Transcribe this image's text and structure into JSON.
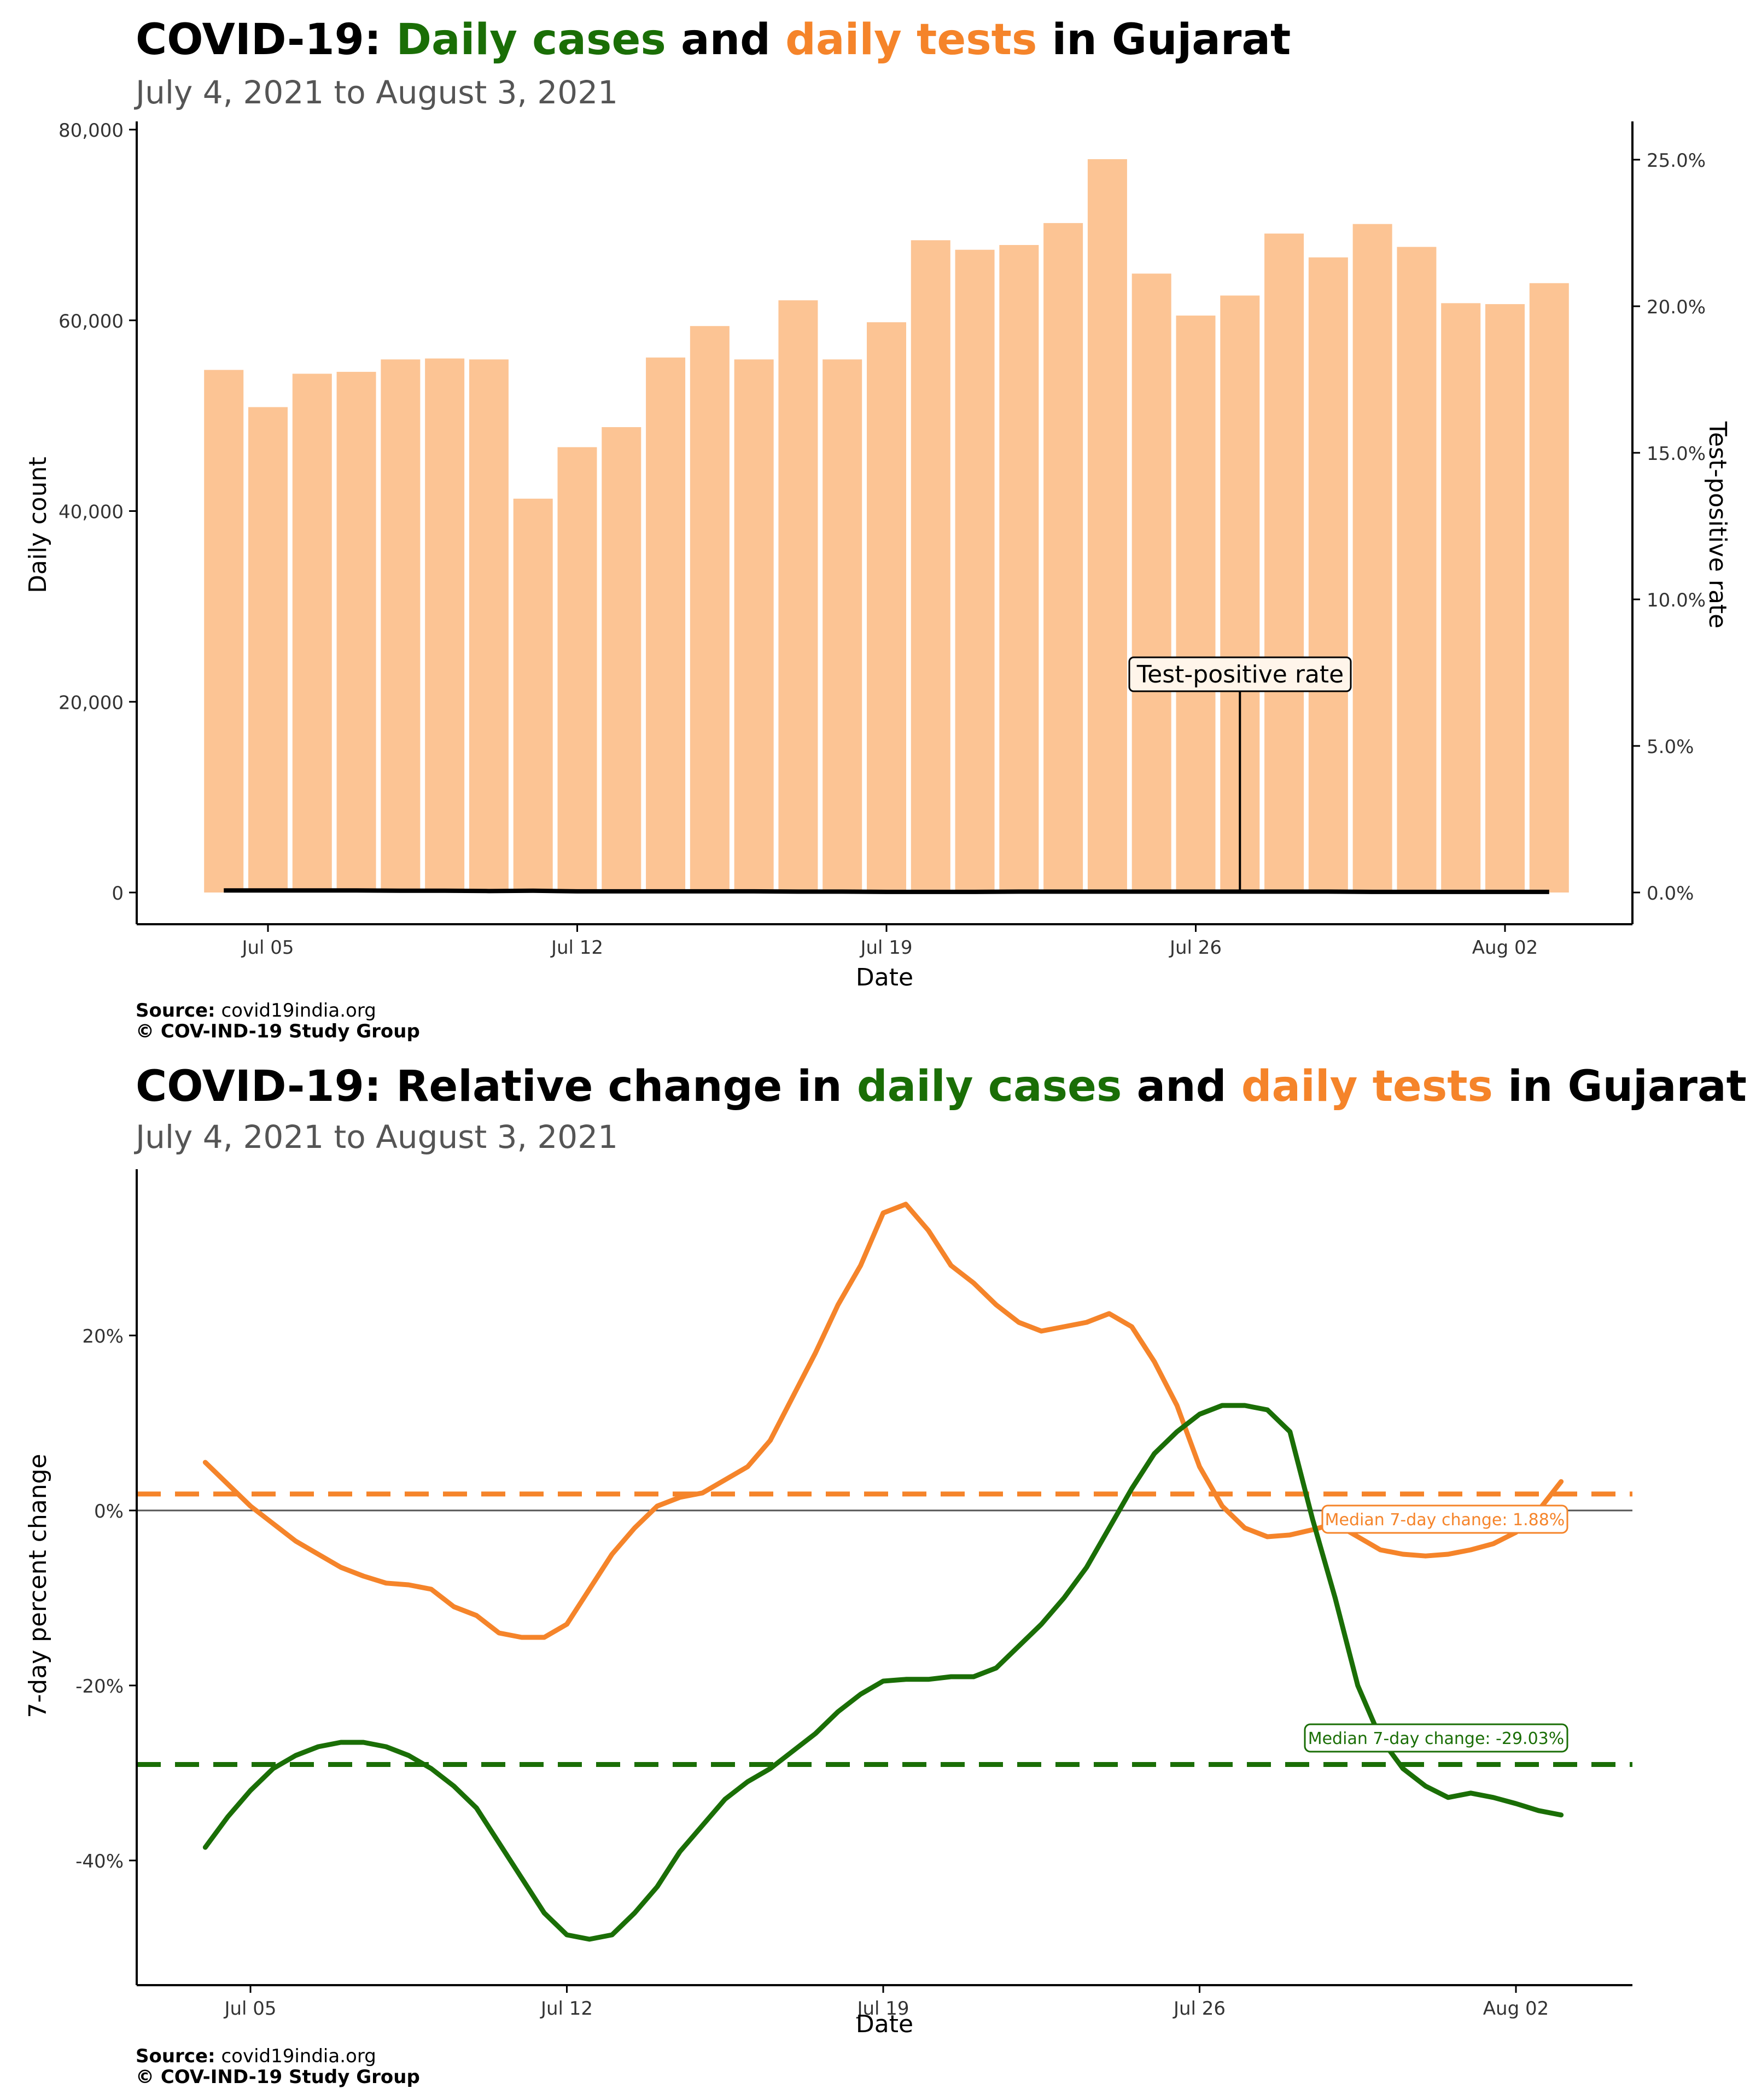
{
  "chart1": {
    "title_prefix": "COVID-19: ",
    "title_part_cases": "Daily cases",
    "title_and": " and ",
    "title_part_tests": "daily tests",
    "title_suffix": " in Gujarat",
    "subtitle": "July  4, 2021 to August  3, 2021",
    "source_label": "Source:",
    "source_value": " covid19india.org",
    "copyright": "© COV-IND-19 Study Group"
  },
  "chart2": {
    "title_prefix": "COVID-19: Relative change in ",
    "title_part_cases": "daily cases",
    "title_and": " and ",
    "title_part_tests": "daily tests",
    "title_suffix": " in Gujarat",
    "subtitle": "July  4, 2021 to August  3, 2021",
    "source_label": "Source:",
    "source_value": " covid19india.org",
    "copyright": "© COV-IND-19 Study Group"
  },
  "colors": {
    "cases": "#1a6e06",
    "tests": "#f5842a",
    "bars": "#fcc494"
  },
  "chart_data": [
    {
      "type": "bar",
      "title": "COVID-19: Daily cases and daily tests in Gujarat",
      "subtitle": "July  4, 2021 to August  3, 2021",
      "xlabel": "Date",
      "ylabel": "Daily count",
      "ylabel_right": "Test-positive rate",
      "ylim": [
        0,
        80000
      ],
      "ylim_right": [
        0,
        25
      ],
      "y_ticks": [
        "0",
        "20,000",
        "40,000",
        "60,000",
        "80,000"
      ],
      "y_ticks_right": [
        "0.0%",
        "5.0%",
        "10.0%",
        "15.0%",
        "20.0%",
        "25.0%"
      ],
      "x_ticks": [
        "Jul 05",
        "Jul 12",
        "Jul 19",
        "Jul 26",
        "Aug 02"
      ],
      "x_tick_days": [
        5,
        12,
        19,
        26,
        33
      ],
      "days": [
        4,
        5,
        6,
        7,
        8,
        9,
        10,
        11,
        12,
        13,
        14,
        15,
        16,
        17,
        18,
        19,
        20,
        21,
        22,
        23,
        24,
        25,
        26,
        27,
        28,
        29,
        30,
        31,
        32,
        33,
        34
      ],
      "series": [
        {
          "name": "daily tests",
          "values": [
            54800,
            50900,
            54400,
            54600,
            55900,
            56000,
            55900,
            41300,
            46700,
            48800,
            56100,
            59400,
            55900,
            62100,
            55900,
            59800,
            68400,
            67400,
            67900,
            70200,
            76900,
            64900,
            60500,
            62600,
            69100,
            66600,
            70100,
            67700,
            61800,
            61700,
            63900
          ]
        },
        {
          "name": "Test-positive rate",
          "values": [
            0.07,
            0.07,
            0.07,
            0.07,
            0.06,
            0.06,
            0.05,
            0.06,
            0.04,
            0.04,
            0.04,
            0.04,
            0.04,
            0.03,
            0.03,
            0.02,
            0.02,
            0.02,
            0.03,
            0.03,
            0.03,
            0.03,
            0.03,
            0.03,
            0.03,
            0.03,
            0.02,
            0.02,
            0.02,
            0.02,
            0.02
          ]
        }
      ],
      "annotation": {
        "text": "Test-positive rate",
        "day": 27
      }
    },
    {
      "type": "line",
      "title": "COVID-19: Relative change in daily cases and daily tests in Gujarat",
      "subtitle": "July  4, 2021 to August  3, 2021",
      "xlabel": "Date",
      "ylabel": "7-day percent change",
      "ylim": [
        -53,
        38
      ],
      "y_ticks": [
        -40,
        -20,
        0,
        20
      ],
      "y_tick_labels": [
        "-40%",
        "-20%",
        "0%",
        "20%"
      ],
      "x_ticks": [
        "Jul 05",
        "Jul 12",
        "Jul 19",
        "Jul 26",
        "Aug 02"
      ],
      "x_tick_days": [
        5,
        12,
        19,
        26,
        33
      ],
      "x": [
        4,
        4.5,
        5,
        5.5,
        6,
        6.5,
        7,
        7.5,
        8,
        8.5,
        9,
        9.5,
        10,
        10.5,
        11,
        11.5,
        12,
        12.5,
        13,
        13.5,
        14,
        14.5,
        15,
        15.5,
        16,
        16.5,
        17,
        17.5,
        18,
        18.5,
        19,
        19.5,
        20,
        20.5,
        21,
        21.5,
        22,
        22.5,
        23,
        23.5,
        24,
        24.5,
        25,
        25.5,
        26,
        26.5,
        27,
        27.5,
        28,
        28.5,
        29,
        29.5,
        30,
        30.5,
        31,
        31.5,
        32,
        32.5,
        33,
        33.5,
        34
      ],
      "series": [
        {
          "name": "daily tests",
          "values": [
            5.5,
            3,
            0.5,
            -1.5,
            -3.5,
            -5,
            -6.5,
            -7.5,
            -8.3,
            -8.5,
            -9,
            -11,
            -12,
            -14,
            -14.5,
            -14.5,
            -13,
            -9,
            -5,
            -2,
            0.5,
            1.5,
            2,
            3.5,
            5,
            8,
            13,
            18,
            23.5,
            28,
            34,
            35,
            32,
            28,
            26,
            23.5,
            21.5,
            20.5,
            21,
            21.5,
            22.5,
            21,
            17,
            12,
            5,
            0.5,
            -2,
            -3,
            -2.8,
            -2.2,
            -1.5,
            -3,
            -4.5,
            -5,
            -5.2,
            -5,
            -4.5,
            -3.8,
            -2.5,
            0,
            3.3
          ]
        },
        {
          "name": "daily cases",
          "values": [
            -38.5,
            -35,
            -32,
            -29.5,
            -28,
            -27,
            -26.5,
            -26.5,
            -27,
            -28,
            -29.5,
            -31.5,
            -34,
            -38,
            -42,
            -46,
            -48.5,
            -49,
            -48.5,
            -46,
            -43,
            -39,
            -36,
            -33,
            -31,
            -29.5,
            -27.5,
            -25.5,
            -23,
            -21,
            -19.5,
            -19.3,
            -19.3,
            -19,
            -19,
            -18,
            -15.5,
            -13,
            -10,
            -6.5,
            -2,
            2.5,
            6.5,
            9,
            11,
            12,
            12,
            11.5,
            9,
            -1,
            -10,
            -20,
            -26,
            -29.5,
            -31.5,
            -32.8,
            -32.3,
            -32.8,
            -33.5,
            -34.3,
            -34.8
          ]
        }
      ],
      "median_lines": [
        {
          "name": "daily tests",
          "value": 1.88,
          "label": "Median 7-day change: 1.88%"
        },
        {
          "name": "daily cases",
          "value": -29.03,
          "label": "Median 7-day change: -29.03%"
        }
      ]
    }
  ]
}
